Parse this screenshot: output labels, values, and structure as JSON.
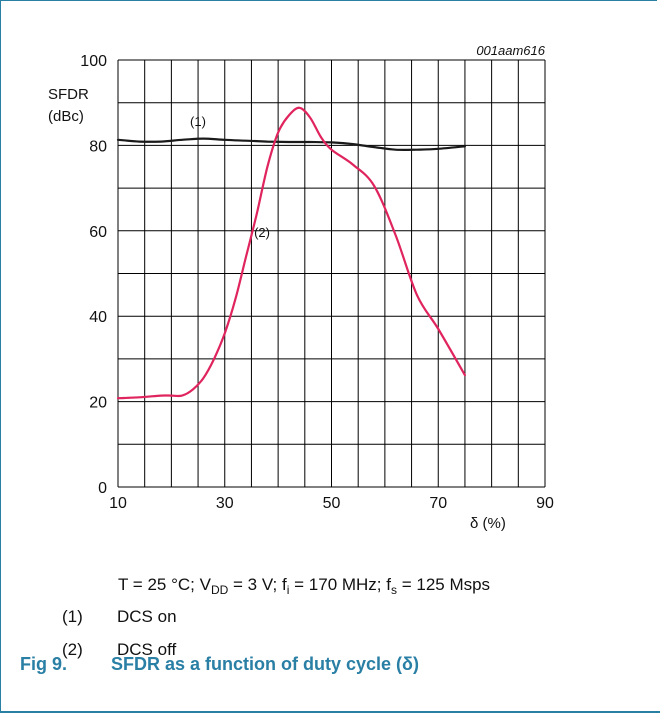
{
  "chart_data": {
    "type": "line",
    "diagram_id": "001aam616",
    "ylabel": [
      "SFDR",
      "(dBc)"
    ],
    "xlabel": "δ (%)",
    "xlim": [
      10,
      90
    ],
    "ylim": [
      0,
      100
    ],
    "x_ticks": [
      "10",
      "30",
      "50",
      "70",
      "90"
    ],
    "y_ticks": [
      "0",
      "20",
      "40",
      "60",
      "80",
      "100"
    ],
    "grid": true,
    "series": [
      {
        "name": "(1)",
        "color": "#1a1a1a",
        "x": [
          10,
          14,
          18,
          22,
          26,
          30,
          34,
          38,
          42,
          46,
          50,
          54,
          58,
          62,
          66,
          70,
          75
        ],
        "y": [
          81.3,
          80.9,
          80.9,
          81.3,
          81.6,
          81.3,
          81.1,
          80.9,
          80.8,
          80.8,
          80.7,
          80.3,
          79.6,
          79.0,
          79.0,
          79.2,
          79.8
        ]
      },
      {
        "name": "(2)",
        "color": "#e0245e",
        "x": [
          10,
          14,
          18,
          20,
          22,
          24,
          26,
          28,
          30,
          32,
          34,
          36,
          38,
          40,
          42,
          44,
          46,
          48,
          50,
          54,
          58,
          62,
          66,
          70,
          75
        ],
        "y": [
          20.8,
          21.0,
          21.4,
          21.4,
          21.4,
          22.8,
          25.5,
          30.0,
          36.0,
          44.0,
          54.0,
          64.0,
          75.0,
          83.0,
          87.0,
          88.8,
          86.5,
          82.0,
          79.0,
          75.5,
          70.5,
          59.0,
          45.0,
          37.0,
          26.2
        ]
      }
    ],
    "annotations": [
      {
        "text": "(1)",
        "x": 23.5,
        "y": 84.5
      },
      {
        "text": "(2)",
        "x": 35.5,
        "y": 58.5
      }
    ]
  },
  "caption": {
    "conditions": {
      "t": "T = 25 °C; V",
      "vdd_sub": "DD",
      "vdd_rest": " = 3 V; f",
      "fi_sub": "i",
      "fi_rest": " = 170 MHz; f",
      "fs_sub": "s",
      "fs_rest": " = 125 Msps"
    },
    "notes": [
      {
        "num": "(1)",
        "text": "DCS on"
      },
      {
        "num": "(2)",
        "text": "DCS off"
      }
    ],
    "figure": {
      "num": "Fig 9.",
      "title": "SFDR as a function of duty cycle (δ)"
    }
  }
}
